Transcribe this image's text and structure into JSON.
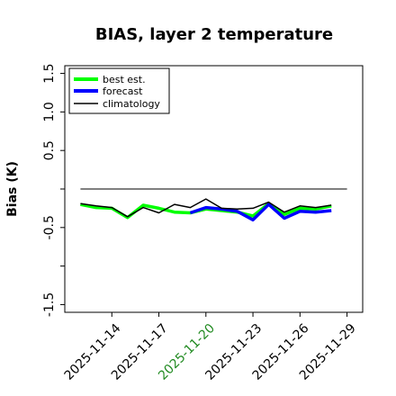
{
  "chart_data": {
    "type": "line",
    "title": "BIAS, layer 2 temperature",
    "xlabel": "",
    "ylabel": "Bias (K)",
    "ylim": [
      -1.6,
      1.6
    ],
    "yticks": [
      -1.5,
      -1.0,
      -0.5,
      0.0,
      0.5,
      1.0,
      1.5
    ],
    "ytick_labels": [
      "-1.5",
      "",
      "-0.5",
      "",
      "0.5",
      "1.0",
      "1.5"
    ],
    "xlim": [
      "2025-11-11",
      "2025-11-30"
    ],
    "xticks": [
      "2025-11-14",
      "2025-11-17",
      "2025-11-20",
      "2025-11-23",
      "2025-11-26",
      "2025-11-29"
    ],
    "xtick_colors": [
      "#000000",
      "#000000",
      "#228B22",
      "#000000",
      "#000000",
      "#000000"
    ],
    "zero_line": 0.0,
    "grid": false,
    "legend_position": "top-left",
    "x": [
      "2025-11-12",
      "2025-11-13",
      "2025-11-14",
      "2025-11-15",
      "2025-11-16",
      "2025-11-17",
      "2025-11-18",
      "2025-11-19",
      "2025-11-20",
      "2025-11-21",
      "2025-11-22",
      "2025-11-23",
      "2025-11-24",
      "2025-11-25",
      "2025-11-26",
      "2025-11-27",
      "2025-11-28",
      "2025-11-29"
    ],
    "series": [
      {
        "name": "best est.",
        "color": "#00ff00",
        "style": "thick",
        "values": [
          -0.2,
          -0.24,
          -0.25,
          -0.37,
          -0.21,
          -0.25,
          -0.3,
          -0.31,
          -0.26,
          -0.28,
          -0.3,
          -0.35,
          -0.19,
          -0.33,
          -0.25,
          -0.26,
          -0.22,
          null
        ]
      },
      {
        "name": "forecast",
        "color": "#0000ff",
        "style": "thick",
        "values": [
          null,
          null,
          null,
          null,
          null,
          null,
          null,
          -0.31,
          -0.24,
          -0.26,
          -0.29,
          -0.4,
          -0.2,
          -0.38,
          -0.29,
          -0.3,
          -0.28,
          null
        ]
      },
      {
        "name": "climatology",
        "color": "#000000",
        "style": "thin",
        "values": [
          -0.19,
          -0.22,
          -0.24,
          -0.36,
          -0.24,
          -0.31,
          -0.2,
          -0.24,
          -0.13,
          -0.25,
          -0.26,
          -0.25,
          -0.17,
          -0.3,
          -0.22,
          -0.24,
          -0.21,
          null
        ]
      }
    ]
  }
}
